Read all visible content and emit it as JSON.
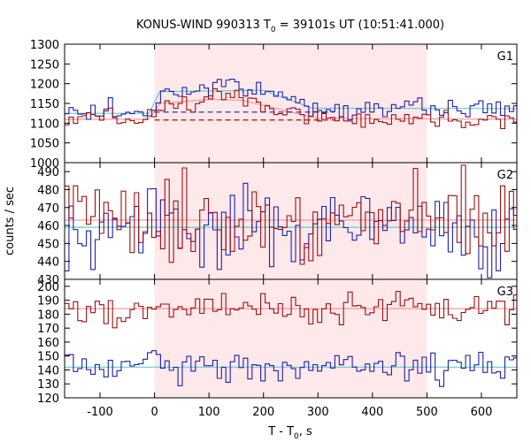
{
  "chart_data": {
    "type": "line",
    "title": "KONUS-WIND 990313 T",
    "title_sub": "0",
    "title_rest": " = 39101s UT (10:51:41.000)",
    "xlabel": "T - T",
    "xlabel_sub": "0",
    "xlabel_rest": ", s",
    "ylabel": "counts / sec",
    "xlim": [
      -165,
      665
    ],
    "xticks": [
      -100,
      0,
      100,
      200,
      300,
      400,
      500,
      600
    ],
    "highlight_interval": [
      0,
      500
    ],
    "colors": {
      "red_series": "#a01010",
      "blue_series": "#2020b0",
      "red_fit": "#ff9999",
      "blue_fit": "#66cccc",
      "highlight": "#fde8ea"
    },
    "panels": [
      {
        "label": "G1",
        "ylim": [
          1000,
          1300
        ],
        "yticks": [
          1000,
          1050,
          1100,
          1150,
          1200,
          1250,
          1300
        ],
        "red_mean": 1110,
        "blue_mean": 1125,
        "red_fit": [
          [
            -165,
            1110
          ],
          [
            -10,
            1110
          ],
          [
            10,
            1150
          ],
          [
            100,
            1160
          ],
          [
            160,
            1158
          ],
          [
            300,
            1112
          ],
          [
            665,
            1110
          ]
        ],
        "blue_fit": [
          [
            -165,
            1125
          ],
          [
            -10,
            1125
          ],
          [
            10,
            1180
          ],
          [
            200,
            1183
          ],
          [
            290,
            1138
          ],
          [
            665,
            1137
          ]
        ],
        "red_baseline": 1108,
        "blue_baseline": 1128,
        "dashed_range": [
          0,
          330
        ],
        "features": [
          [
            -95,
            -80,
            30,
            100
          ],
          [
            80,
            160,
            30,
            40
          ]
        ]
      },
      {
        "label": "G2",
        "ylim": [
          430,
          495
        ],
        "yticks": [
          430,
          440,
          450,
          460,
          470,
          480,
          490
        ],
        "red_mean": 463,
        "blue_mean": 459,
        "red_fit": [
          [
            -165,
            463
          ],
          [
            665,
            463
          ]
        ],
        "blue_fit": [
          [
            -165,
            459
          ],
          [
            665,
            459
          ]
        ],
        "features": []
      },
      {
        "label": "G3",
        "ylim": [
          120,
          205
        ],
        "yticks": [
          120,
          130,
          140,
          150,
          160,
          170,
          180,
          190,
          200
        ],
        "red_mean": 184,
        "blue_mean": 142,
        "red_fit": [
          [
            -165,
            184
          ],
          [
            665,
            184
          ]
        ],
        "blue_fit": [
          [
            -165,
            142
          ],
          [
            665,
            142
          ]
        ],
        "features": []
      }
    ]
  }
}
